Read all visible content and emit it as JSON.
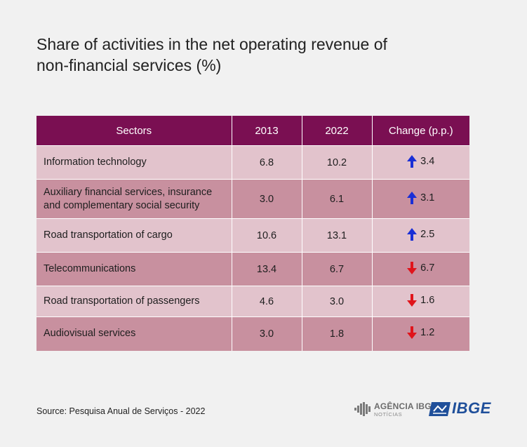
{
  "chart_data": {
    "type": "table",
    "title": "Share of activities in the net operating revenue of non-financial services (%)",
    "title_lines": [
      "Share of activities in the net operating revenue of",
      "non-financial services (%)"
    ],
    "columns": [
      "Sectors",
      "2013",
      "2022",
      "Change (p.p.)"
    ],
    "rows": [
      {
        "sector_lines": [
          "Information technology"
        ],
        "v2013": "6.8",
        "v2022": "10.2",
        "direction": "up",
        "change": "3.4",
        "shade": "light"
      },
      {
        "sector_lines": [
          "Auxiliary financial services, insurance",
          "and complementary social security"
        ],
        "v2013": "3.0",
        "v2022": "6.1",
        "direction": "up",
        "change": "3.1",
        "shade": "dark"
      },
      {
        "sector_lines": [
          "Road transportation of cargo"
        ],
        "v2013": "10.6",
        "v2022": "13.1",
        "direction": "up",
        "change": "2.5",
        "shade": "light"
      },
      {
        "sector_lines": [
          "Telecommunications"
        ],
        "v2013": "13.4",
        "v2022": "6.7",
        "direction": "down",
        "change": "6.7",
        "shade": "dark"
      },
      {
        "sector_lines": [
          "Road transportation of passengers"
        ],
        "v2013": "4.6",
        "v2022": "3.0",
        "direction": "down",
        "change": "1.6",
        "shade": "light"
      },
      {
        "sector_lines": [
          "Audiovisual services"
        ],
        "v2013": "3.0",
        "v2022": "1.8",
        "direction": "down",
        "change": "1.2",
        "shade": "dark"
      }
    ],
    "colors": {
      "header_bg": "#7a0f52",
      "row_light": "#e2c3cc",
      "row_dark": "#c8909f",
      "arrow_up": "#1a2fd6",
      "arrow_down": "#e0141b"
    }
  },
  "source": "Source: Pesquisa Anual de Serviços - 2022",
  "logos": {
    "agencia_brand": "AGÊNCIA IBGE",
    "agencia_sub": "NOTÍCIAS",
    "ibge_word": "IBGE",
    "agencia_icon": "agencia-ibge-logo-icon",
    "ibge_icon": "ibge-logo-icon"
  }
}
